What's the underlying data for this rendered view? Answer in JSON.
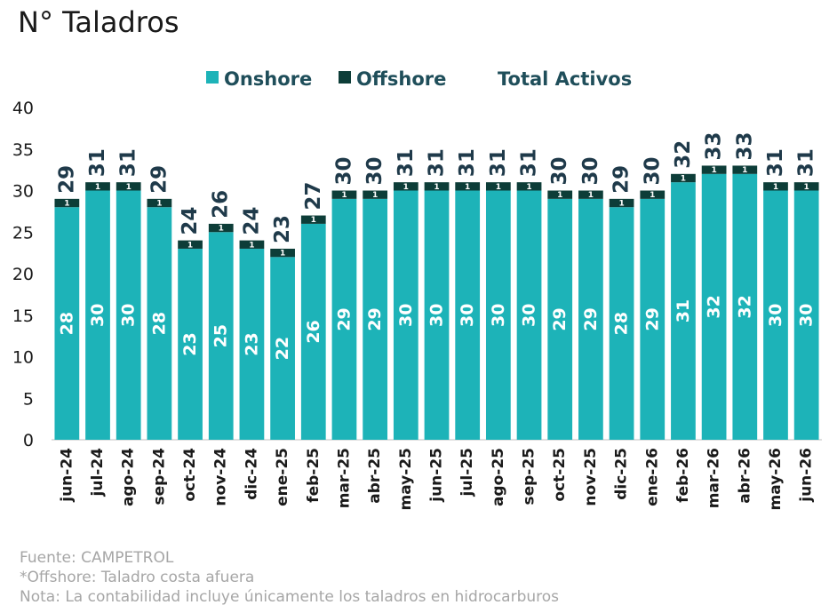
{
  "title": "N° Taladros",
  "notes": {
    "source": "Fuente: CAMPETROL",
    "offshore_note": "*Offshore: Taladro costa afuera",
    "note": "Nota: La contabilidad incluye únicamente los taladros en hidrocarburos"
  },
  "colors": {
    "onshore": "#1db3b8",
    "offshore": "#0d3d38"
  },
  "chart_data": {
    "type": "bar",
    "stacked": true,
    "categories": [
      "jun-24",
      "jul-24",
      "ago-24",
      "sep-24",
      "oct-24",
      "nov-24",
      "dic-24",
      "ene-25",
      "feb-25",
      "mar-25",
      "abr-25",
      "may-25",
      "jun-25",
      "jul-25",
      "ago-25",
      "sep-25",
      "oct-25",
      "nov-25",
      "dic-25",
      "ene-26",
      "feb-26",
      "mar-26",
      "abr-26",
      "may-26",
      "jun-26"
    ],
    "series": [
      {
        "name": "Onshore",
        "values": [
          28,
          30,
          30,
          28,
          23,
          25,
          23,
          22,
          26,
          29,
          29,
          30,
          30,
          30,
          30,
          30,
          29,
          29,
          28,
          29,
          31,
          32,
          32,
          30,
          30
        ]
      },
      {
        "name": "Offshore",
        "values": [
          1,
          1,
          1,
          1,
          1,
          1,
          1,
          1,
          1,
          1,
          1,
          1,
          1,
          1,
          1,
          1,
          1,
          1,
          1,
          1,
          1,
          1,
          1,
          1,
          1
        ]
      }
    ],
    "totals_name": "Total Activos",
    "totals": [
      29,
      31,
      31,
      29,
      24,
      26,
      24,
      23,
      27,
      30,
      30,
      31,
      31,
      31,
      31,
      31,
      30,
      30,
      29,
      30,
      32,
      33,
      33,
      31,
      31
    ],
    "ylim": [
      0,
      40
    ],
    "yticks": [
      0,
      5,
      10,
      15,
      20,
      25,
      30,
      35,
      40
    ],
    "legend": "top"
  }
}
